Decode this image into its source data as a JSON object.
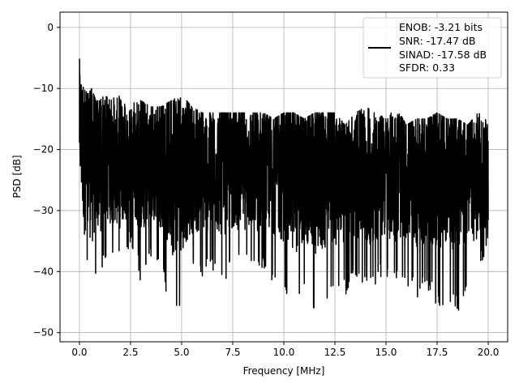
{
  "chart_data": {
    "type": "line",
    "xlabel": "Frequency [MHz]",
    "ylabel": "PSD [dB]",
    "xlim": [
      -0.95,
      20.95
    ],
    "ylim": [
      -51.5,
      2.5
    ],
    "xticks": [
      0.0,
      2.5,
      5.0,
      7.5,
      10.0,
      12.5,
      15.0,
      17.5,
      20.0
    ],
    "xtick_labels": [
      "0.0",
      "2.5",
      "5.0",
      "7.5",
      "10.0",
      "12.5",
      "15.0",
      "17.5",
      "20.0"
    ],
    "yticks": [
      0,
      -10,
      -20,
      -30,
      -40,
      -50
    ],
    "ytick_labels": [
      "0",
      "−10",
      "−20",
      "−30",
      "−40",
      "−50"
    ],
    "grid": true,
    "legend_position": "top-right",
    "legend_lines": [
      "ENOB: -3.21 bits",
      "SNR: -17.47 dB",
      "SINAD: -17.58 dB",
      "SFDR: 0.33"
    ],
    "series": [
      {
        "color": "#000000",
        "x": [
          0.0,
          0.1,
          0.2,
          0.3,
          0.4,
          0.6,
          0.8,
          1.0,
          1.25,
          1.5,
          1.75,
          2.0,
          2.25,
          2.5,
          2.75,
          3.0,
          3.5,
          4.0,
          4.5,
          5.0,
          5.5,
          6.0,
          6.5,
          7.0,
          7.5,
          8.0,
          8.5,
          9.0,
          9.5,
          10.0,
          10.5,
          11.0,
          11.5,
          12.0,
          12.5,
          13.0,
          13.5,
          14.0,
          14.5,
          15.0,
          15.5,
          16.0,
          16.5,
          17.0,
          17.5,
          18.0,
          18.5,
          19.0,
          19.5,
          20.0
        ],
        "y_max": [
          0,
          -3,
          -8,
          -9,
          -11,
          -10,
          -12,
          -12,
          -11,
          -12,
          -11,
          -10,
          -13,
          -13,
          -12,
          -12,
          -13,
          -13,
          -12,
          -11,
          -13,
          -14,
          -14,
          -14,
          -14,
          -14,
          -14,
          -14,
          -15,
          -14,
          -14,
          -15,
          -14,
          -14,
          -14,
          -16,
          -14,
          -13,
          -14,
          -15,
          -13,
          -16,
          -15,
          -15,
          -14,
          -15,
          -15,
          -16,
          -14,
          -15
        ],
        "y_min": [
          -25,
          -31,
          -36,
          -35,
          -40,
          -49,
          -42,
          -44,
          -38,
          -40,
          -36,
          -38,
          -38,
          -36,
          -37,
          -42,
          -39,
          -40,
          -48,
          -45,
          -40,
          -41,
          -40,
          -42,
          -40,
          -39,
          -41,
          -40,
          -42,
          -45,
          -47,
          -44,
          -47,
          -46,
          -43,
          -44,
          -41,
          -43,
          -42,
          -41,
          -41,
          -42,
          -45,
          -43,
          -46,
          -45,
          -47,
          -43,
          -42,
          -35
        ],
        "y_center": [
          -15,
          -18,
          -20,
          -20,
          -20,
          -21,
          -21,
          -21,
          -21,
          -21,
          -22,
          -22,
          -22,
          -22,
          -22,
          -22,
          -22,
          -22,
          -23,
          -23,
          -23,
          -23,
          -23,
          -23,
          -23,
          -23,
          -23,
          -23,
          -23,
          -23,
          -24,
          -24,
          -24,
          -24,
          -24,
          -24,
          -24,
          -24,
          -24,
          -24,
          -24,
          -24,
          -24,
          -24,
          -24,
          -24,
          -24,
          -24,
          -24,
          -24
        ]
      }
    ]
  }
}
